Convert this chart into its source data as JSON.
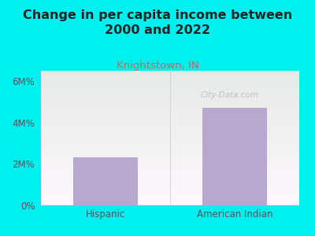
{
  "title": "Change in per capita income between\n2000 and 2022",
  "subtitle": "Knightstown, IN",
  "categories": [
    "Hispanic",
    "American Indian"
  ],
  "values": [
    2300000,
    4700000
  ],
  "bar_color": "#b8a8d0",
  "background_color": "#00f0f0",
  "title_fontsize": 11.5,
  "subtitle_fontsize": 9.5,
  "tick_fontsize": 8.5,
  "yticks": [
    0,
    2000000,
    4000000,
    6000000
  ],
  "ytick_labels": [
    "0%",
    "2M%",
    "4M%",
    "6M%"
  ],
  "ylim": [
    0,
    6500000
  ],
  "watermark": "City-Data.com",
  "title_color": "#222222",
  "subtitle_color": "#cc6655",
  "tick_color": "#555555",
  "plot_grad_top_left": "#dff5df",
  "plot_grad_bottom_right": "#f5fff5",
  "separator_color": "#aaaaaa"
}
